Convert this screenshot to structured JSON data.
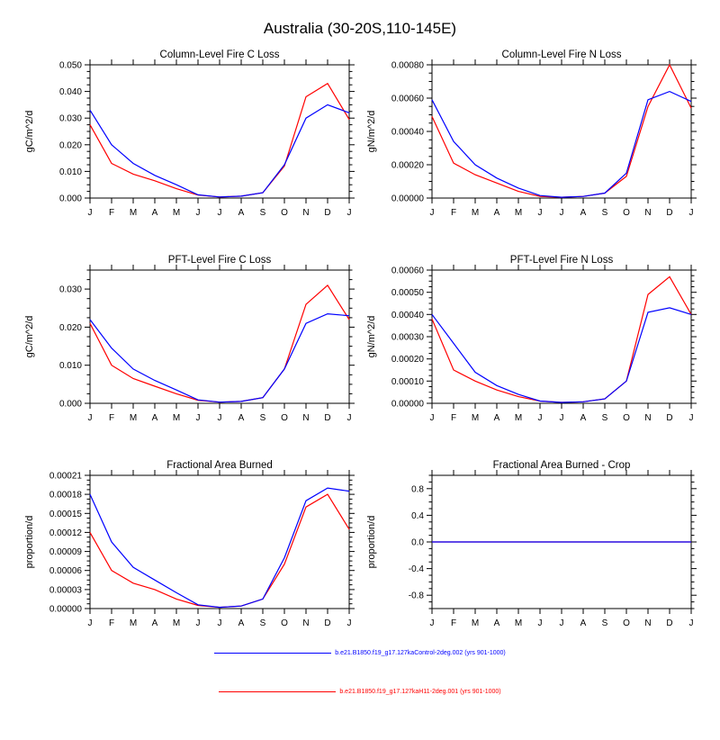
{
  "page_title": "Australia (30-20S,110-145E)",
  "months": [
    "J",
    "F",
    "M",
    "A",
    "M",
    "J",
    "J",
    "A",
    "S",
    "O",
    "N",
    "D",
    "J"
  ],
  "colors": {
    "series_blue": "#0000ff",
    "series_red": "#ff0000",
    "axis": "#000000"
  },
  "legend": [
    {
      "label": "b.e21.B1850.f19_g17.127kaControl-2deg.002 (yrs 901-1000)",
      "color": "#0000ff"
    },
    {
      "label": "b.e21.B1850.f19_g17.127kaH11-2deg.001 (yrs 901-1000)",
      "color": "#ff0000"
    }
  ],
  "chart_data": [
    {
      "type": "line",
      "title": "Column-Level Fire C Loss",
      "ylabel": "gC/m^2/d",
      "ylim": [
        0,
        0.05
      ],
      "yticks": [
        0.0,
        0.01,
        0.02,
        0.03,
        0.04,
        0.05
      ],
      "ydecimals": 3,
      "yminor": 3,
      "series": [
        {
          "name": "control",
          "color": "#0000ff",
          "values": [
            0.033,
            0.02,
            0.013,
            0.0085,
            0.005,
            0.0012,
            0.0004,
            0.0007,
            0.002,
            0.0125,
            0.03,
            0.035,
            0.032
          ]
        },
        {
          "name": "h11",
          "color": "#ff0000",
          "values": [
            0.0275,
            0.013,
            0.009,
            0.0065,
            0.0035,
            0.0011,
            0.0004,
            0.0007,
            0.002,
            0.012,
            0.038,
            0.043,
            0.0295
          ]
        }
      ]
    },
    {
      "type": "line",
      "title": "Column-Level Fire N Loss",
      "ylabel": "gN/m^2/d",
      "ylim": [
        0,
        0.0008
      ],
      "yticks": [
        0.0,
        0.0002,
        0.0004,
        0.0006,
        0.0008
      ],
      "ydecimals": 5,
      "yminor": 3,
      "series": [
        {
          "name": "control",
          "color": "#0000ff",
          "values": [
            0.00059,
            0.00034,
            0.0002,
            0.00012,
            6e-05,
            1.5e-05,
            5e-06,
            1e-05,
            3e-05,
            0.00015,
            0.00059,
            0.00064,
            0.00058
          ]
        },
        {
          "name": "h11",
          "color": "#ff0000",
          "values": [
            0.00049,
            0.00021,
            0.00014,
            9e-05,
            4e-05,
            1e-05,
            5e-06,
            1e-05,
            3e-05,
            0.00013,
            0.00055,
            0.0008,
            0.00054
          ]
        }
      ]
    },
    {
      "type": "line",
      "title": "PFT-Level Fire C Loss",
      "ylabel": "gC/m^2/d",
      "ylim": [
        0,
        0.035
      ],
      "yticks": [
        0.0,
        0.01,
        0.02,
        0.03
      ],
      "ydecimals": 3,
      "yminor": 3,
      "series": [
        {
          "name": "control",
          "color": "#0000ff",
          "values": [
            0.022,
            0.0145,
            0.009,
            0.006,
            0.0035,
            0.0009,
            0.0003,
            0.0005,
            0.0015,
            0.009,
            0.021,
            0.0235,
            0.023
          ]
        },
        {
          "name": "h11",
          "color": "#ff0000",
          "values": [
            0.021,
            0.01,
            0.0065,
            0.0045,
            0.0025,
            0.0008,
            0.0003,
            0.0005,
            0.0015,
            0.009,
            0.026,
            0.031,
            0.022
          ]
        }
      ]
    },
    {
      "type": "line",
      "title": "PFT-Level Fire N Loss",
      "ylabel": "gN/m^2/d",
      "ylim": [
        0,
        0.0006
      ],
      "yticks": [
        0.0,
        0.0001,
        0.0002,
        0.0003,
        0.0004,
        0.0005,
        0.0006
      ],
      "ydecimals": 5,
      "yminor": 3,
      "series": [
        {
          "name": "control",
          "color": "#0000ff",
          "values": [
            0.0004,
            0.00027,
            0.00014,
            8e-05,
            4e-05,
            1e-05,
            4e-06,
            7e-06,
            2e-05,
            0.0001,
            0.00041,
            0.00043,
            0.0004
          ]
        },
        {
          "name": "h11",
          "color": "#ff0000",
          "values": [
            0.00038,
            0.00015,
            0.0001,
            6e-05,
            3e-05,
            1e-05,
            4e-06,
            7e-06,
            2e-05,
            0.0001,
            0.00049,
            0.00057,
            0.0004
          ]
        }
      ]
    },
    {
      "type": "line",
      "title": "Fractional Area Burned",
      "ylabel": "proportion/d",
      "ylim": [
        0,
        0.00021
      ],
      "yticks": [
        0.0,
        3e-05,
        6e-05,
        9e-05,
        0.00012,
        0.00015,
        0.00018,
        0.00021
      ],
      "ydecimals": 5,
      "yminor": 3,
      "series": [
        {
          "name": "control",
          "color": "#0000ff",
          "values": [
            0.00018,
            0.000105,
            6.5e-05,
            4.5e-05,
            2.5e-05,
            6e-06,
            2e-06,
            4e-06,
            1.5e-05,
            8e-05,
            0.00017,
            0.00019,
            0.000185
          ]
        },
        {
          "name": "h11",
          "color": "#ff0000",
          "values": [
            0.00012,
            6e-05,
            4e-05,
            3e-05,
            1.5e-05,
            5e-06,
            2e-06,
            4e-06,
            1.5e-05,
            7e-05,
            0.00016,
            0.00018,
            0.000125
          ]
        }
      ]
    },
    {
      "type": "line",
      "title": "Fractional Area Burned - Crop",
      "ylabel": "proportion/d",
      "ylim": [
        -1.0,
        1.0
      ],
      "yticks": [
        -0.8,
        -0.4,
        0.0,
        0.4,
        0.8
      ],
      "ydecimals": 1,
      "yminor": 3,
      "series": [
        {
          "name": "control",
          "color": "#0000ff",
          "values": [
            0,
            0,
            0,
            0,
            0,
            0,
            0,
            0,
            0,
            0,
            0,
            0,
            0
          ]
        },
        {
          "name": "h11",
          "color": "#ff0000",
          "values": [
            0,
            0,
            0,
            0,
            0,
            0,
            0,
            0,
            0,
            0,
            0,
            0,
            0
          ]
        }
      ]
    }
  ]
}
